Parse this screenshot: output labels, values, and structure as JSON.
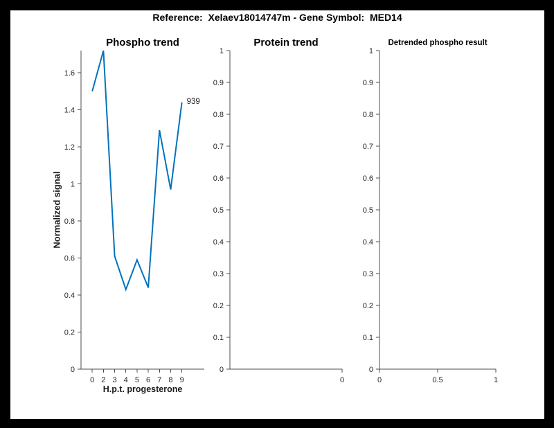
{
  "window": {
    "canvas_bg": "#000000",
    "figure_bg": "#ffffff"
  },
  "header": {
    "title": "Reference:  Xelaev18014747m - Gene Symbol:  MED14"
  },
  "style": {
    "accent_line": "#0072BD",
    "axis_color": "#4d4d4d",
    "tick_text_color": "#262626",
    "title_color": "#000000"
  },
  "chart_data": [
    {
      "type": "line",
      "title": "Phospho trend",
      "xlabel": "H.p.t. progesterone",
      "ylabel": "Normalized signal",
      "line_color": "#0072BD",
      "grid": false,
      "legend": null,
      "xlim": [
        -1,
        10
      ],
      "ylim": [
        0,
        1.72
      ],
      "x": [
        0,
        1,
        2,
        3,
        4,
        5,
        6,
        7,
        8
      ],
      "values": [
        1.5,
        1.72,
        0.61,
        0.43,
        0.59,
        0.44,
        1.29,
        0.97,
        1.44
      ],
      "x_time_points": [
        "0",
        "2",
        "3",
        "4",
        "5",
        "6",
        "7",
        "8",
        "9"
      ],
      "xticks": [
        {
          "v": 0,
          "label": "0"
        },
        {
          "v": 1,
          "label": "2"
        },
        {
          "v": 2,
          "label": "3"
        },
        {
          "v": 3,
          "label": "4"
        },
        {
          "v": 4,
          "label": "5"
        },
        {
          "v": 5,
          "label": "6"
        },
        {
          "v": 6,
          "label": "7"
        },
        {
          "v": 7,
          "label": "8"
        },
        {
          "v": 8,
          "label": "9"
        }
      ],
      "yticks": [
        {
          "v": 0,
          "label": "0"
        },
        {
          "v": 0.2,
          "label": "0.2"
        },
        {
          "v": 0.4,
          "label": "0.4"
        },
        {
          "v": 0.6,
          "label": "0.6"
        },
        {
          "v": 0.8,
          "label": "0.8"
        },
        {
          "v": 1,
          "label": "1"
        },
        {
          "v": 1.2,
          "label": "1.2"
        },
        {
          "v": 1.4,
          "label": "1.4"
        },
        {
          "v": 1.6,
          "label": "1.6"
        }
      ],
      "annotation": {
        "text": "939",
        "x": 8,
        "y": 1.44
      }
    },
    {
      "type": "line",
      "title": "Protein trend",
      "xlabel": "",
      "ylabel": "",
      "grid": false,
      "legend": null,
      "xlim": [
        0,
        1
      ],
      "ylim": [
        0,
        1
      ],
      "x": [],
      "values": [],
      "xticks": [
        {
          "v": 1,
          "label": "0"
        }
      ],
      "yticks": [
        {
          "v": 0,
          "label": "0"
        },
        {
          "v": 0.1,
          "label": "0.1"
        },
        {
          "v": 0.2,
          "label": "0.2"
        },
        {
          "v": 0.3,
          "label": "0.3"
        },
        {
          "v": 0.4,
          "label": "0.4"
        },
        {
          "v": 0.5,
          "label": "0.5"
        },
        {
          "v": 0.6,
          "label": "0.6"
        },
        {
          "v": 0.7,
          "label": "0.7"
        },
        {
          "v": 0.8,
          "label": "0.8"
        },
        {
          "v": 0.9,
          "label": "0.9"
        },
        {
          "v": 1,
          "label": "1"
        }
      ],
      "annotation": null
    },
    {
      "type": "line",
      "title": "Detrended phospho result",
      "xlabel": "",
      "ylabel": "",
      "grid": false,
      "legend": null,
      "xlim": [
        0,
        1
      ],
      "ylim": [
        0,
        1
      ],
      "x": [],
      "values": [],
      "xticks": [
        {
          "v": 0,
          "label": "0"
        },
        {
          "v": 0.5,
          "label": "0.5"
        },
        {
          "v": 1,
          "label": "1"
        }
      ],
      "yticks": [
        {
          "v": 0,
          "label": "0"
        },
        {
          "v": 0.1,
          "label": "0.1"
        },
        {
          "v": 0.2,
          "label": "0.2"
        },
        {
          "v": 0.3,
          "label": "0.3"
        },
        {
          "v": 0.4,
          "label": "0.4"
        },
        {
          "v": 0.5,
          "label": "0.5"
        },
        {
          "v": 0.6,
          "label": "0.6"
        },
        {
          "v": 0.7,
          "label": "0.7"
        },
        {
          "v": 0.8,
          "label": "0.8"
        },
        {
          "v": 0.9,
          "label": "0.9"
        },
        {
          "v": 1,
          "label": "1"
        }
      ],
      "annotation": null
    }
  ]
}
